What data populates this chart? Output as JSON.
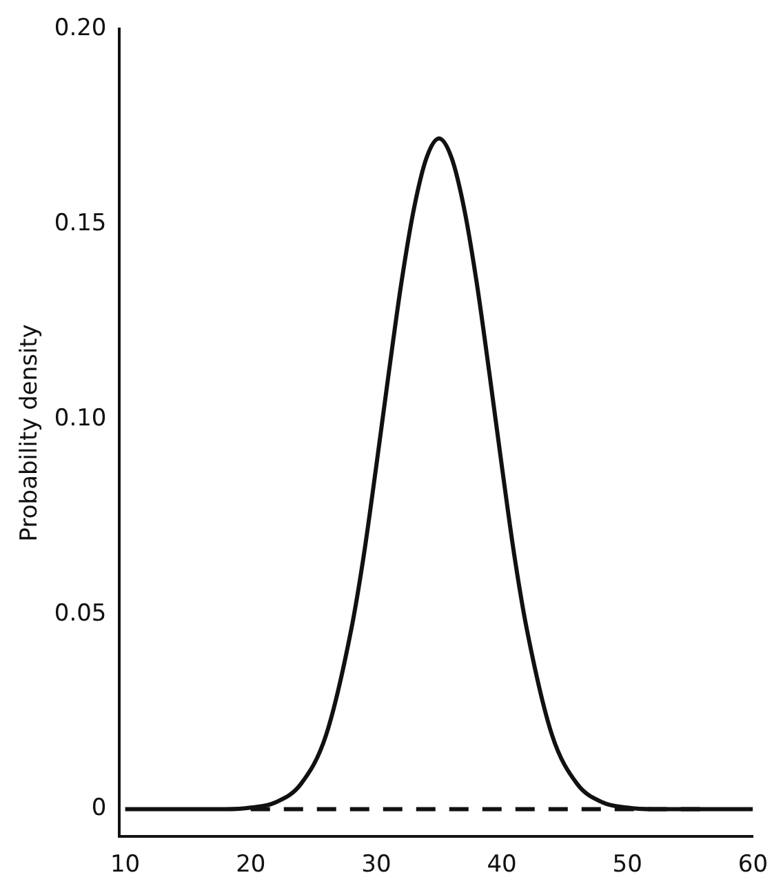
{
  "chart_data": {
    "type": "line",
    "ylabel": "Probability density",
    "x": [
      10,
      15,
      18,
      20,
      22,
      24,
      26,
      28,
      29,
      30,
      31,
      32,
      33,
      34,
      35,
      36,
      37,
      38,
      39,
      40,
      41,
      42,
      44,
      46,
      48,
      50,
      52,
      55,
      60
    ],
    "series": [
      {
        "color": "#111111",
        "line_style": "solid",
        "values": [
          0,
          0,
          0,
          0.0004,
          0.0018,
          0.0065,
          0.019,
          0.046,
          0.065,
          0.088,
          0.112,
          0.135,
          0.154,
          0.167,
          0.172,
          0.167,
          0.154,
          0.135,
          0.112,
          0.088,
          0.065,
          0.046,
          0.019,
          0.0065,
          0.0018,
          0.0004,
          0,
          0,
          0
        ]
      },
      {
        "type": "line",
        "color": "#111111",
        "line_style": "dashed",
        "x": [
          20,
          56
        ],
        "values": [
          0,
          0
        ]
      }
    ],
    "xlim": [
      9.5,
      60
    ],
    "xticks": [
      10,
      20,
      30,
      40,
      50,
      60
    ],
    "ylim": [
      -0.007,
      0.2
    ],
    "yticks": [
      0,
      0.05,
      {
        "value": 0.1,
        "label": "0.10"
      },
      0.15,
      {
        "value": 0.2,
        "label": "0.20"
      }
    ],
    "grid": false,
    "legend": false,
    "marker": "none"
  }
}
